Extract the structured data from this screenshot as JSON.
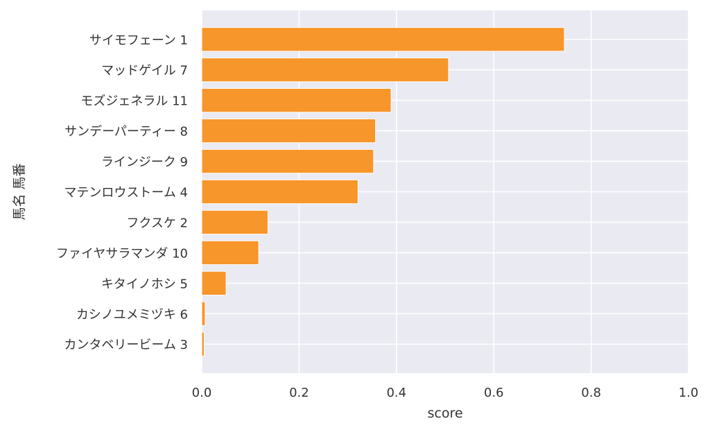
{
  "chart_data": {
    "type": "bar",
    "orientation": "horizontal",
    "categories": [
      "サイモフェーン 1",
      "マッドゲイル 7",
      "モズジェネラル 11",
      "サンデーパーティー 8",
      "ラインジーク 9",
      "マテンロウストーム 4",
      "フクスケ 2",
      "ファイヤサラマンダ 10",
      "キタイノホシ 5",
      "カシノユメミヅキ 6",
      "カンタベリービーム 3"
    ],
    "values": [
      0.745,
      0.507,
      0.389,
      0.357,
      0.353,
      0.321,
      0.136,
      0.117,
      0.05,
      0.007,
      0.005
    ],
    "xlabel": "score",
    "ylabel": "馬名 馬番",
    "xlim": [
      0,
      1.0
    ],
    "xticks": [
      "0.0",
      "0.2",
      "0.4",
      "0.6",
      "0.8",
      "1.0"
    ],
    "grid": true,
    "colors": {
      "bar": "#F7962A",
      "plot_background": "#EAEAF2",
      "grid": "#FFFFFF",
      "text": "#333333"
    }
  }
}
